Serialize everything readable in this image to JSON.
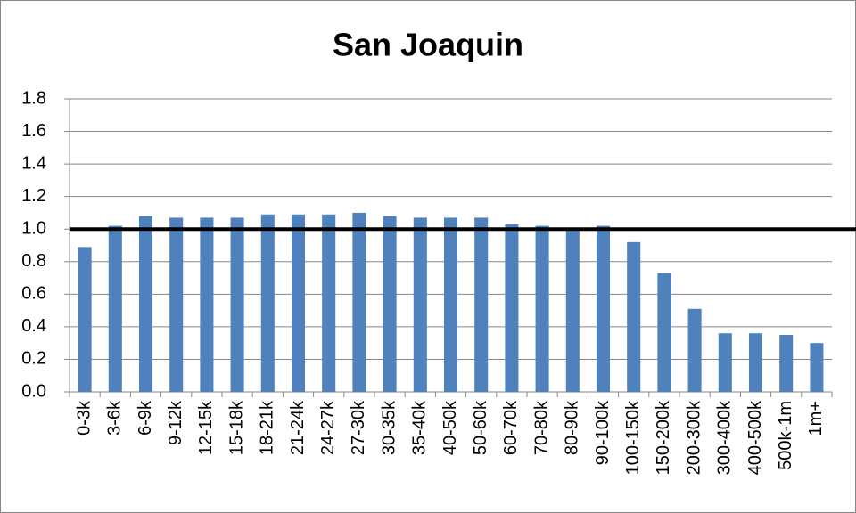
{
  "chart_data": {
    "type": "bar",
    "title": "San Joaquin",
    "categories": [
      "0-3k",
      "3-6k",
      "6-9k",
      "9-12k",
      "12-15k",
      "15-18k",
      "18-21k",
      "21-24k",
      "24-27k",
      "27-30k",
      "30-35k",
      "35-40k",
      "40-50k",
      "50-60k",
      "60-70k",
      "70-80k",
      "80-90k",
      "90-100k",
      "100-150k",
      "150-200k",
      "200-300k",
      "300-400k",
      "400-500k",
      "500k-1m",
      "1m+"
    ],
    "values": [
      0.89,
      1.02,
      1.08,
      1.07,
      1.07,
      1.07,
      1.09,
      1.09,
      1.09,
      1.1,
      1.08,
      1.07,
      1.07,
      1.07,
      1.03,
      1.02,
      1.0,
      1.02,
      0.92,
      0.73,
      0.51,
      0.36,
      0.36,
      0.35,
      0.3
    ],
    "color": "#4f81bd",
    "ylim": [
      0,
      1.8
    ],
    "yticks": [
      {
        "value": 0,
        "label": "0.0"
      },
      0.2,
      0.4,
      0.6,
      0.8,
      {
        "value": 1,
        "label": "1.0"
      },
      1.2,
      1.4,
      1.6,
      1.8
    ],
    "grid": true,
    "reference_line": 1
  }
}
